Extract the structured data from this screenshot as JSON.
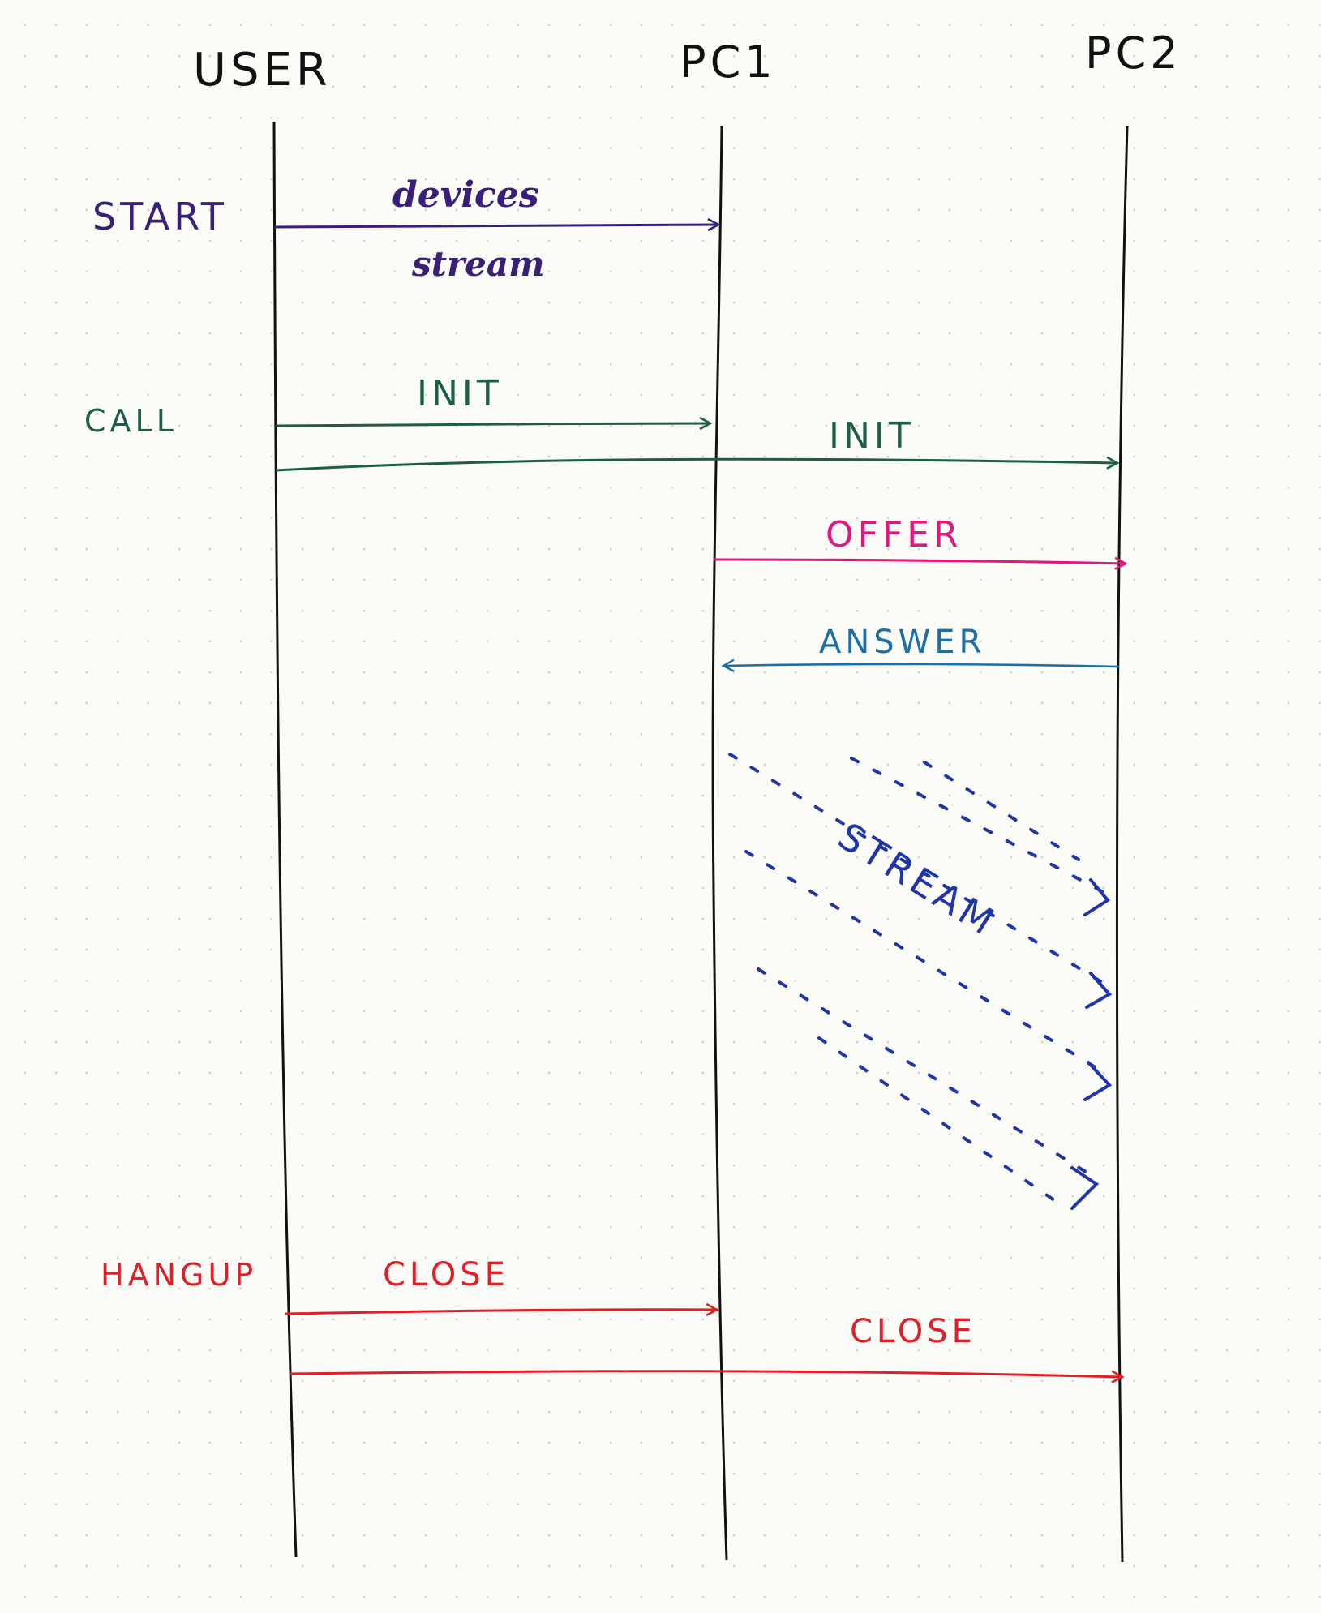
{
  "participants": {
    "user": "USER",
    "pc1": "PC1",
    "pc2": "PC2"
  },
  "actions": {
    "start": "START",
    "call": "CALL",
    "hangup": "HANGUP"
  },
  "messages": {
    "start_devices": "devices",
    "start_stream": "stream",
    "call_init_pc1": "INIT",
    "call_init_pc2": "INIT",
    "offer": "OFFER",
    "answer": "ANSWER",
    "media_stream": "STREAM",
    "close_pc1": "CLOSE",
    "close_pc2": "CLOSE"
  },
  "colors": {
    "lifeline": "#111111",
    "start": "#3a1f78",
    "call": "#1d5e48",
    "offer": "#e0197e",
    "answer": "#1e6fa8",
    "stream": "#1f35a8",
    "hangup": "#e01f26"
  }
}
